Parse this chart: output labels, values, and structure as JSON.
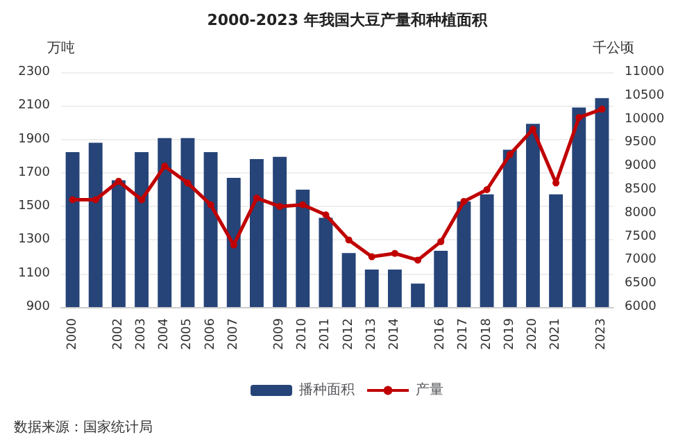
{
  "chart_data": {
    "type": "bar",
    "title": "2000-2023 年我国大豆产量和种植面积",
    "ylabel": "万吨",
    "y2label": "千公顷",
    "categories": [
      "2000",
      null,
      "2002",
      "2003",
      "2004",
      "2005",
      "2006",
      "2007",
      null,
      "2009",
      "2010",
      "2011",
      "2012",
      "2013",
      "2014",
      null,
      "2016",
      "2017",
      "2018",
      "2019",
      "2020",
      "2021",
      null,
      "2023"
    ],
    "series": [
      {
        "name": "播种面积",
        "axis": "y2",
        "color": "#264478",
        "values": [
          9300,
          9500,
          8700,
          9300,
          9600,
          9600,
          9300,
          8750,
          9150,
          9200,
          8500,
          7900,
          7150,
          6800,
          6800,
          6500,
          7200,
          8250,
          8400,
          9350,
          9900,
          8400,
          10250,
          10450
        ]
      },
      {
        "name": "产量",
        "type": "line",
        "color": "#c00000",
        "marker": "circle",
        "values": [
          1540,
          1540,
          1650,
          1540,
          1740,
          1640,
          1510,
          1270,
          1550,
          1500,
          1510,
          1450,
          1300,
          1200,
          1220,
          1180,
          1290,
          1530,
          1600,
          1810,
          1960,
          1640,
          2030,
          2080
        ]
      }
    ],
    "ylim": [
      900,
      2300
    ],
    "yticks": [
      900,
      1100,
      1300,
      1500,
      1700,
      1900,
      2100,
      2300
    ],
    "y2lim": [
      6000,
      11000
    ],
    "y2ticks": [
      6000,
      6500,
      7000,
      7500,
      8000,
      8500,
      9000,
      9500,
      10000,
      10500,
      11000
    ],
    "grid": "y",
    "legend": "bottom",
    "annotations": [
      "数据来源：国家统计局"
    ]
  }
}
